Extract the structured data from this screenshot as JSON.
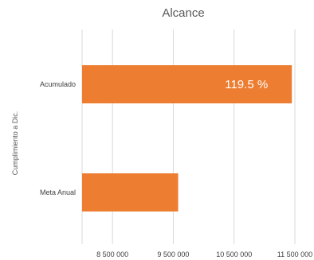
{
  "chart_data": {
    "type": "bar",
    "orientation": "horizontal",
    "title": "Alcance",
    "xlabel": "",
    "ylabel": "Cumplimiento a Dic.",
    "categories": [
      "Acumulado",
      "Meta Anual"
    ],
    "values": [
      11450000,
      9580000
    ],
    "data_labels": [
      "119.5 %",
      ""
    ],
    "xlim": [
      8000000,
      11500000
    ],
    "x_ticks": [
      8500000,
      9500000,
      10500000,
      11500000
    ],
    "x_tick_labels": [
      "8 500 000",
      "9 500 000",
      "10 500 000",
      "11 500 000"
    ],
    "grid": "vertical",
    "bar_color": "#ED7D31",
    "legend": "none"
  }
}
